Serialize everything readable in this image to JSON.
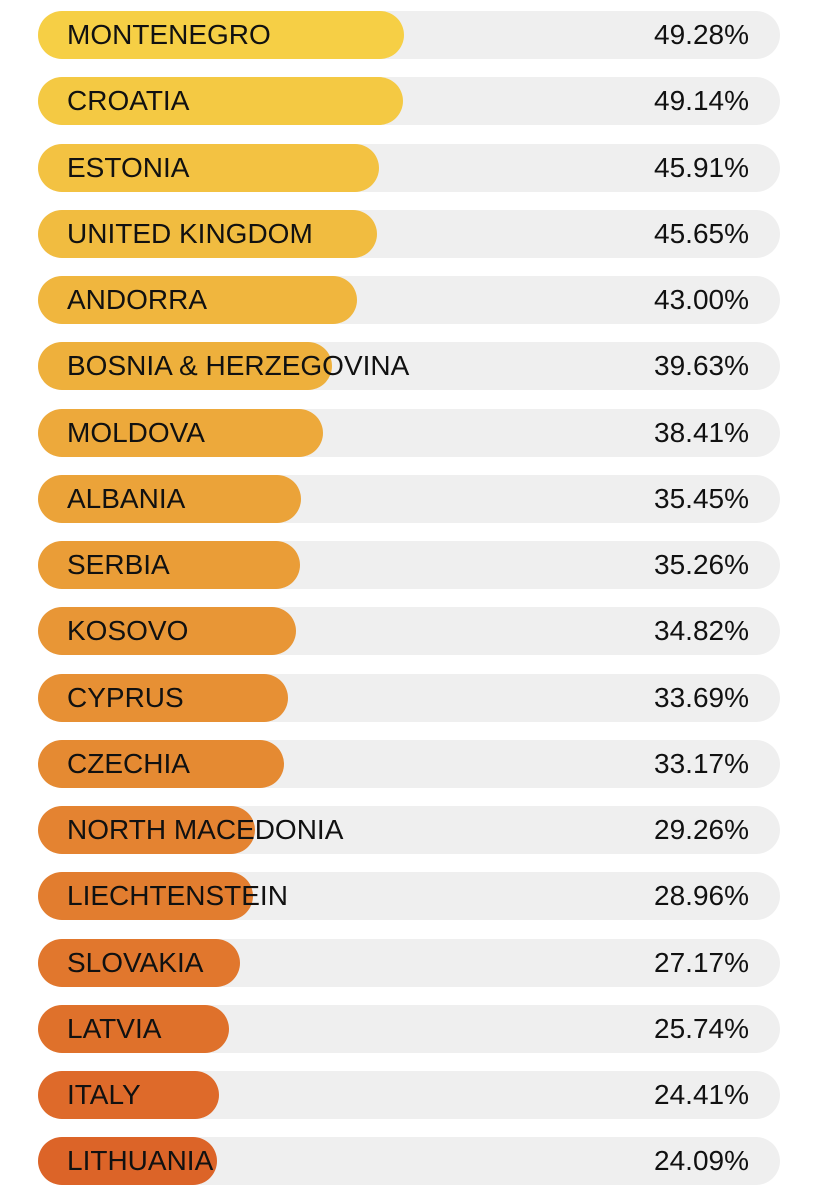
{
  "chart_data": {
    "type": "bar",
    "orientation": "horizontal",
    "title": "",
    "xlabel": "",
    "ylabel": "",
    "xlim": [
      0,
      100
    ],
    "unit": "%",
    "grid": false,
    "legend": "none",
    "color_gradient": [
      "#f6cf45",
      "#dc6428"
    ],
    "bars": [
      {
        "category": "MONTENEGRO",
        "value": 49.28,
        "label": "49.28%"
      },
      {
        "category": "CROATIA",
        "value": 49.14,
        "label": "49.14%"
      },
      {
        "category": "ESTONIA",
        "value": 45.91,
        "label": "45.91%"
      },
      {
        "category": "UNITED KINGDOM",
        "value": 45.65,
        "label": "45.65%"
      },
      {
        "category": "ANDORRA",
        "value": 43.0,
        "label": "43.00%"
      },
      {
        "category": "BOSNIA & HERZEGOVINA",
        "value": 39.63,
        "label": "39.63%"
      },
      {
        "category": "MOLDOVA",
        "value": 38.41,
        "label": "38.41%"
      },
      {
        "category": "ALBANIA",
        "value": 35.45,
        "label": "35.45%"
      },
      {
        "category": "SERBIA",
        "value": 35.26,
        "label": "35.26%"
      },
      {
        "category": "KOSOVO",
        "value": 34.82,
        "label": "34.82%"
      },
      {
        "category": "CYPRUS",
        "value": 33.69,
        "label": "33.69%"
      },
      {
        "category": "CZECHIA",
        "value": 33.17,
        "label": "33.17%"
      },
      {
        "category": "NORTH MACEDONIA",
        "value": 29.26,
        "label": "29.26%"
      },
      {
        "category": "LIECHTENSTEIN",
        "value": 28.96,
        "label": "28.96%"
      },
      {
        "category": "SLOVAKIA",
        "value": 27.17,
        "label": "27.17%"
      },
      {
        "category": "LATVIA",
        "value": 25.74,
        "label": "25.74%"
      },
      {
        "category": "ITALY",
        "value": 24.41,
        "label": "24.41%"
      },
      {
        "category": "LITHUANIA",
        "value": 24.09,
        "label": "24.09%"
      }
    ]
  }
}
